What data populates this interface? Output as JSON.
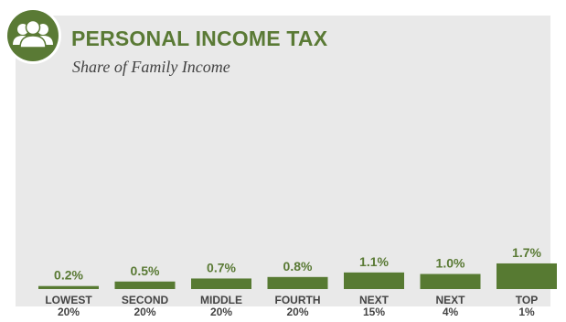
{
  "header": {
    "icon": "people-group-icon",
    "accent_color": "#5a7a35"
  },
  "chart_data": {
    "type": "bar",
    "title": "PERSONAL INCOME TAX",
    "subtitle": "Share of Family Income",
    "categories": [
      [
        "LOWEST",
        "20%"
      ],
      [
        "SECOND",
        "20%"
      ],
      [
        "MIDDLE",
        "20%"
      ],
      [
        "FOURTH",
        "20%"
      ],
      [
        "NEXT",
        "15%"
      ],
      [
        "NEXT",
        "4%"
      ],
      [
        "TOP",
        "1%"
      ]
    ],
    "values": [
      0.2,
      0.5,
      0.7,
      0.8,
      1.1,
      1.0,
      1.7
    ],
    "value_labels": [
      "0.2%",
      "0.5%",
      "0.7%",
      "0.8%",
      "1.1%",
      "1.0%",
      "1.7%"
    ],
    "bar_color": "#577a32",
    "xlabel": "",
    "ylabel": "",
    "grid": false
  }
}
